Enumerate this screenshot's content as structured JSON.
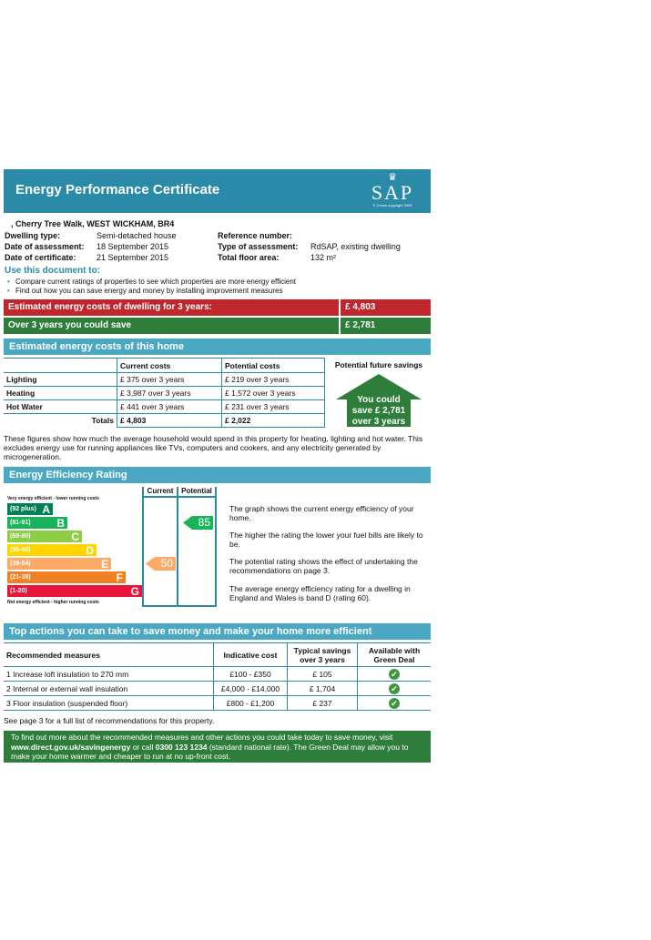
{
  "header": {
    "title": "Energy Performance Certificate",
    "logo": "SAP",
    "copyright": "© Crown copyright 2009",
    "crown_icon": "crown-icon"
  },
  "address": ", Cherry Tree Walk, WEST WICKHAM, BR4",
  "info": {
    "dwelling_type_label": "Dwelling type:",
    "dwelling_type": "Semi-detached house",
    "date_assessment_label": "Date of assessment:",
    "date_assessment": "18   September   2015",
    "date_certificate_label": "Date of certificate:",
    "date_certificate": "21   September   2015",
    "reference_label": "Reference number:",
    "reference": "",
    "type_assessment_label": "Type of assessment:",
    "type_assessment": "RdSAP, existing dwelling",
    "floor_area_label": "Total floor area:",
    "floor_area": "132 m²"
  },
  "use": {
    "heading": "Use this document to:",
    "bullets": [
      "Compare current ratings of properties to see which properties are more energy efficient",
      "Find out how you can save energy and money by installing improvement measures"
    ]
  },
  "costs_bar": {
    "label": "Estimated energy costs of dwelling for 3 years:",
    "value": "£ 4,803"
  },
  "save_bar": {
    "label": "Over 3 years you could save",
    "value": "£ 2,781"
  },
  "costs_table": {
    "title": "Estimated energy costs of this home",
    "headers": [
      "",
      "Current costs",
      "Potential costs"
    ],
    "future_header": "Potential future savings",
    "rows": [
      {
        "name": "Lighting",
        "current": "£ 375 over 3 years",
        "potential": "£ 219 over 3 years"
      },
      {
        "name": "Heating",
        "current": "£ 3,987 over 3 years",
        "potential": "£ 1,572 over 3 years"
      },
      {
        "name": "Hot Water",
        "current": "£ 441 over 3 years",
        "potential": "£ 231 over 3 years"
      }
    ],
    "totals": {
      "name": "Totals",
      "current": "£ 4,803",
      "potential": "£ 2,022"
    },
    "savings_lines": [
      "You could",
      "save £ 2,781",
      "over 3 years"
    ]
  },
  "costs_note": "These figures show how much the average household would spend in this property for heating, lighting and hot water. This excludes energy use for running appliances like TVs, computers and cookers, and any electricity generated by microgeneration.",
  "eer": {
    "title": "Energy Efficiency Rating",
    "col_current": "Current",
    "col_potential": "Potential",
    "top_note": "Very energy efficient - lower running costs",
    "bottom_note": "Not energy efficient - higher running costs",
    "bands": [
      {
        "range": "(92 plus)",
        "letter": "A",
        "color": "#008054"
      },
      {
        "range": "(81-91)",
        "letter": "B",
        "color": "#19b459"
      },
      {
        "range": "(69-80)",
        "letter": "C",
        "color": "#8dce46"
      },
      {
        "range": "(55-68)",
        "letter": "D",
        "color": "#ffd500"
      },
      {
        "range": "(39-54)",
        "letter": "E",
        "color": "#fcaa65"
      },
      {
        "range": "(21-38)",
        "letter": "F",
        "color": "#ef8023"
      },
      {
        "range": "(1-20)",
        "letter": "G",
        "color": "#e9153b"
      }
    ],
    "current": "50",
    "potential": "85",
    "current_color": "#fcaa65",
    "potential_color": "#19b459",
    "texts": [
      "The graph shows the current energy efficiency of your home.",
      "The higher the rating the lower your fuel bills are likely to be.",
      "The potential rating shows the effect of undertaking the recommendations on page 3.",
      "The average energy efficiency rating for a dwelling in England and Wales is band D (rating 60)."
    ]
  },
  "actions": {
    "title": "Top actions you can take to save money and make your home more efficient",
    "headers": [
      "Recommended measures",
      "Indicative cost",
      "Typical savings over 3 years",
      "Available with Green Deal"
    ],
    "rows": [
      {
        "measure": "1  Increase loft insulation to 270 mm",
        "cost": "£100 - £350",
        "saving": "£ 105"
      },
      {
        "measure": "2  Internal or external wall insulation",
        "cost": "£4,000 - £14,000",
        "saving": "£ 1,704"
      },
      {
        "measure": "3  Floor insulation (suspended floor)",
        "cost": "£800 - £1,200",
        "saving": "£ 237"
      }
    ],
    "check": "✔",
    "see_page": "See page 3 for a full list of recommendations for this property."
  },
  "footer": {
    "line1": "To find out more about the recommended measures and other actions you could take today to save money, visit",
    "link": "www.direct.gov.uk/savingenergy",
    "mid": " or call ",
    "phone": "0300 123 1234",
    "line2": " (standard national rate). The Green Deal may allow you to make your home warmer and cheaper to run at no up-front cost."
  }
}
